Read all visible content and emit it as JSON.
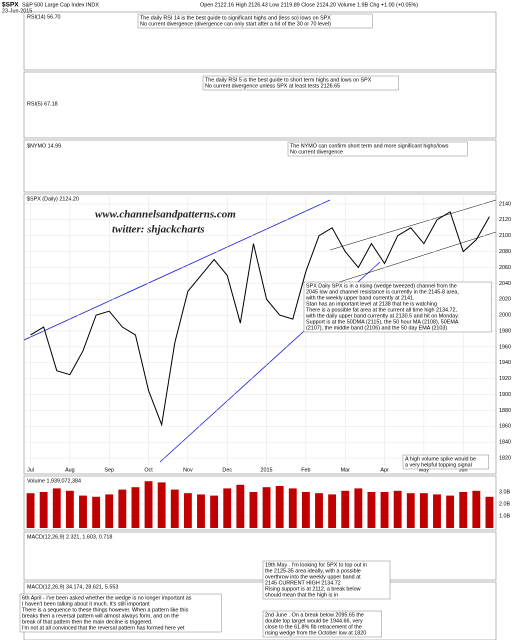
{
  "chart_data": {
    "type": "line",
    "header": {
      "symbol": "$SPX",
      "name": "S&P 500 Large Cap Index INDX",
      "date": "23-Jun-2015",
      "quote": "Open 2122.16  High 2126.43  Low 2119.89  Close 2124.20  Volume 1.9B  Chg +1.00 (+0.05%)"
    },
    "panel_labels": {
      "rsi14": "RSI(14) 56.70",
      "rsi5": "RSI(5) 67.18",
      "nymo": "$NYMO 14.99",
      "price": "$SPX (Daily) 2124.20",
      "volume": "Volume 1,939,072,384",
      "macd": "MACD(12,26,9) 2.321, 1.603, 0.718",
      "macd2": "MACD(12,26,9) 34.174, 28.621, 5.553"
    },
    "watermark": [
      "www.channelsandpatterns.com",
      "twitter: shjackcharts"
    ],
    "categories": [
      "Jul",
      null,
      null,
      "Aug",
      null,
      null,
      "Sep",
      null,
      null,
      "Oct",
      null,
      null,
      "Nov",
      null,
      null,
      "Dec",
      null,
      null,
      "2015",
      null,
      null,
      "Feb",
      null,
      null,
      "Mar",
      null,
      null,
      "Apr",
      null,
      null,
      "May",
      null,
      null,
      "Jun",
      null,
      null
    ],
    "series": [
      {
        "name": "$SPX",
        "color": "#000000",
        "values": [
          1975,
          1985,
          1930,
          1925,
          1955,
          2000,
          2005,
          1985,
          1975,
          1905,
          1862,
          1965,
          2030,
          2050,
          2070,
          2050,
          1990,
          2090,
          2020,
          2000,
          1995,
          2055,
          2100,
          2110,
          2080,
          2060,
          2090,
          2065,
          2100,
          2110,
          2090,
          2120,
          2130,
          2080,
          2095,
          2124
        ]
      }
    ],
    "ylim": [
      1810,
      2150
    ],
    "yticks": [
      1820,
      1840,
      1860,
      1880,
      1900,
      1920,
      1940,
      1960,
      1980,
      2000,
      2020,
      2040,
      2060,
      2080,
      2100,
      2120,
      2140
    ],
    "volume": {
      "color": "#c00000",
      "values": [
        2900000000.0,
        3000000000.0,
        3300000000.0,
        3100000000.0,
        2700000000.0,
        2600000000.0,
        2800000000.0,
        3200000000.0,
        3400000000.0,
        3900000000.0,
        3800000000.0,
        3200000000.0,
        2900000000.0,
        2800000000.0,
        2700000000.0,
        3300000000.0,
        3600000000.0,
        3000000000.0,
        3400000000.0,
        3500000000.0,
        3300000000.0,
        3000000000.0,
        2900000000.0,
        2800000000.0,
        3100000000.0,
        3300000000.0,
        3000000000.0,
        3000000000.0,
        3100000000.0,
        2900000000.0,
        2900000000.0,
        2800000000.0,
        2700000000.0,
        3000000000.0,
        3100000000.0,
        2600000000.0
      ],
      "ylim": [
        0,
        4000000000
      ],
      "yticks": [
        {
          "value": 1000000000,
          "label": "1.0B"
        },
        {
          "value": 2000000000,
          "label": "2.0B"
        },
        {
          "value": 3000000000,
          "label": "3.0B"
        }
      ]
    },
    "annotations": [
      [
        "The daily RSI 14 is the best guide to significant highs and (less so) lows on SPX",
        "No current divergence (divergence can only start after a hit of the 30 or 70 level)"
      ],
      [
        "The daily RSI 5 is the best guide to short term highs and lows on SPX",
        "No current divergence unless SPX at least tests 2126.65"
      ],
      [
        "The NYMO can confirm short term and more significant highs/lows",
        "No current divergence"
      ],
      [
        "SPX Daily   SPX is in a rising (wedge tweezed) channel from the",
        "2045 low and channel resistance is currently in the 2145-8 area,",
        "with the weekly upper band currently at 2141.",
        "Stan has an important level at 2138 that he is watching",
        "There is a possible fat area at the current all time high 2134.72,",
        "with the daily upper band currently at 2130.5 and hit on Monday.",
        "Support is at the 50DMA (2115), the 50 hour MA (2108), 50EMA",
        "(2107), the middle band (2106) and the 50 day EMA (2103)"
      ],
      [
        "A high volume spike would be",
        "a very helpful topping signal"
      ],
      [
        "19th May . I'm looking for SPX to top out in",
        "the 2125-35 area ideally, with a possible",
        "overthrow into the weekly upper band at",
        "2145  CURRENT HIGH 2134.72",
        "Rising support is at 2112, a break below",
        "should mean that the high is in"
      ],
      [
        "6th April - I've been asked whether the wedge is no longer important as",
        "I haven't been talking about it much.  It's still important",
        "There is a sequence to these things however. When a pattern like this",
        "breaks then a reversal pattern will almost always form, and on the",
        "break of that pattern then the main decline is triggered.",
        "I'm not at all convinced that the reversal pattern has formed here yet"
      ],
      [
        "2nd June . On a break below 2095.65 the",
        "double top target would be 1944.66, very",
        "close to the 61.8% fib retracement of the",
        "rising wedge from the October low at 1820"
      ]
    ]
  }
}
